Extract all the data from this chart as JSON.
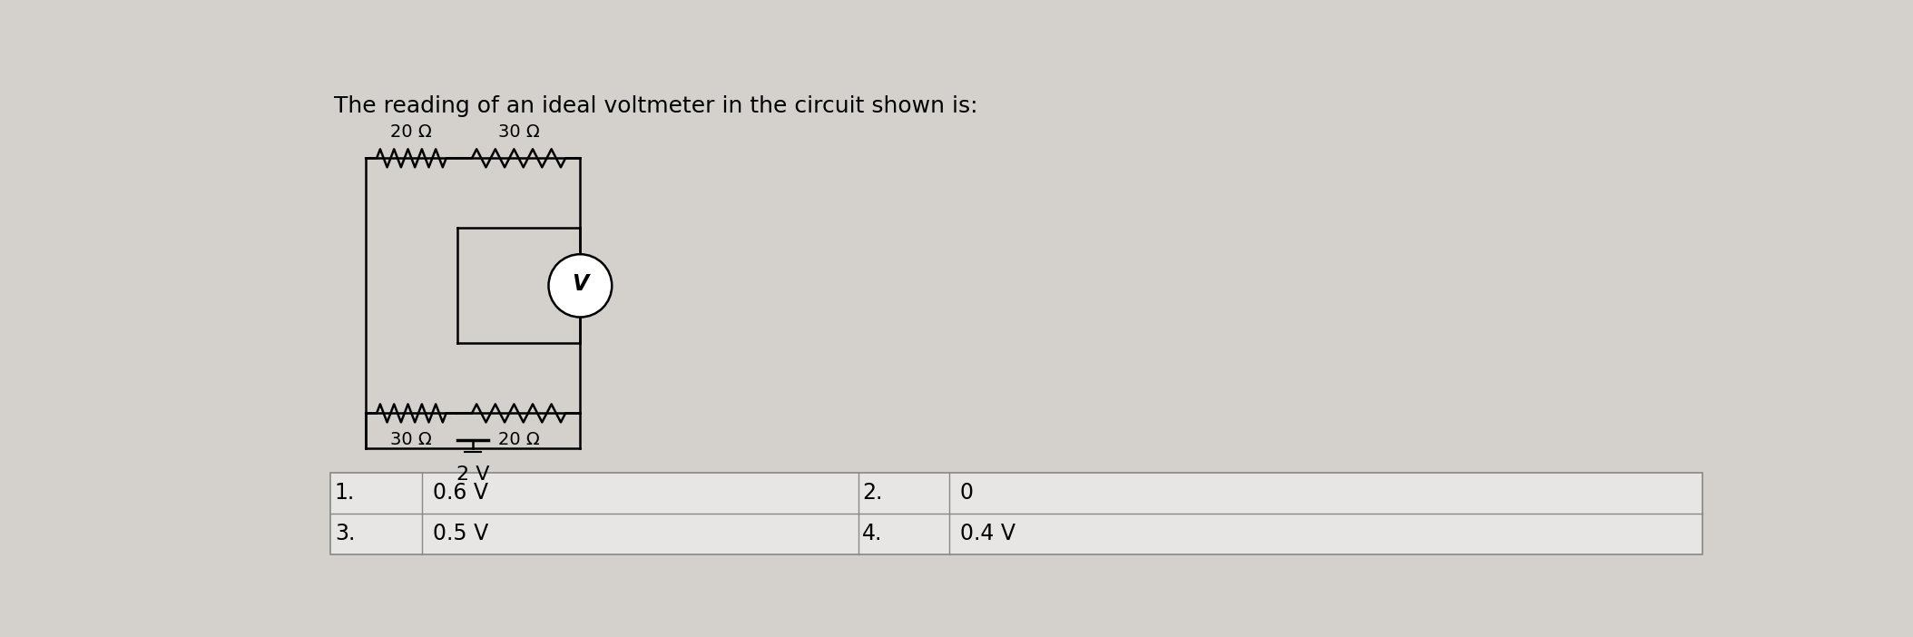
{
  "title": "The reading of an ideal voltmeter in the circuit shown is:",
  "background_color": "#d4d0cc",
  "resistor_labels": {
    "top_left": "20 Ω",
    "top_right": "30 Ω",
    "bottom_left": "30 Ω",
    "bottom_right": "20 Ω"
  },
  "battery_label": "2 V",
  "voltmeter_label": "V",
  "answers": [
    [
      "1.",
      "0.6 V",
      "2.",
      "0"
    ],
    [
      "3.",
      "0.5 V",
      "4.",
      "0.4 V"
    ]
  ],
  "title_fontsize": 18,
  "answer_fontsize": 17,
  "label_fontsize": 14
}
